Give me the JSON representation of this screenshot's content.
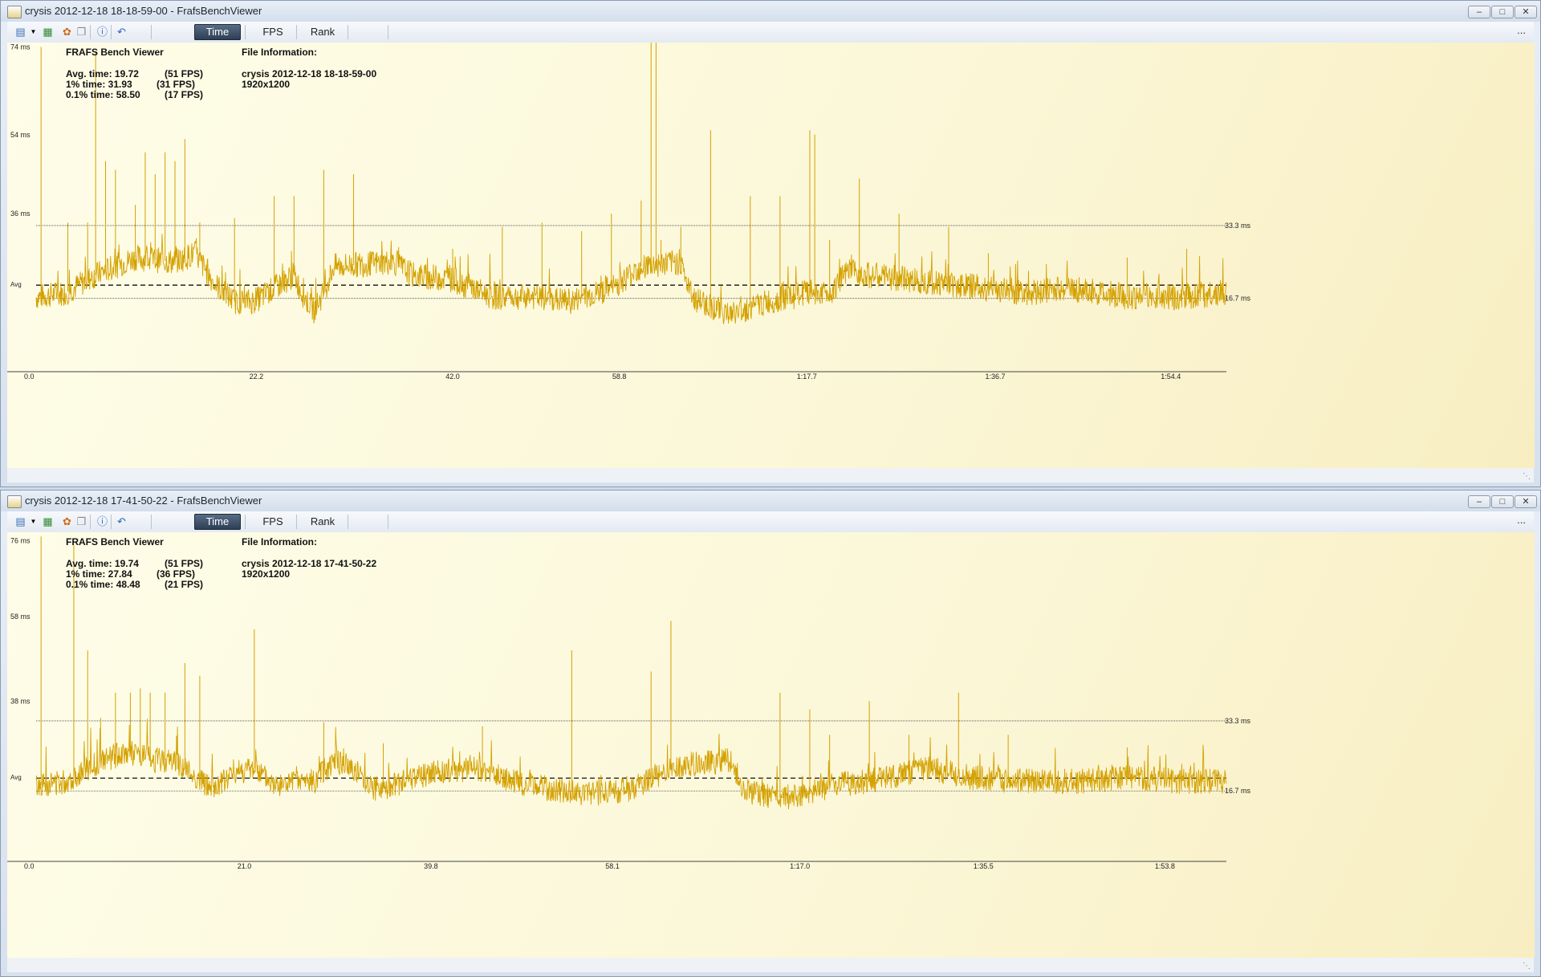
{
  "windows": [
    {
      "title": "crysis 2012-12-18 18-18-59-00 - FrafsBenchViewer",
      "toolbar": {
        "tabs": [
          "Time",
          "FPS",
          "Rank"
        ],
        "active": "Time",
        "more": "..."
      },
      "app_name": "FRAFS Bench Viewer",
      "stats": [
        {
          "label": "Avg. time: 19.72",
          "fps": "(51 FPS)"
        },
        {
          "label": "1% time: 31.93",
          "fps": "(31 FPS)"
        },
        {
          "label": "0.1% time: 58.50",
          "fps": "(17 FPS)"
        }
      ],
      "file_info_title": "File Information:",
      "file_name": "crysis 2012-12-18 18-18-59-00",
      "resolution": "1920x1200",
      "chart_data": {
        "type": "line",
        "xlabel": "",
        "ylabel": "",
        "y_ticks": [
          "74 ms",
          "54 ms",
          "36 ms"
        ],
        "y_tick_values": [
          74,
          54,
          36
        ],
        "x_ticks": [
          "0.0",
          "22.2",
          "42.0",
          "58.8",
          "1:17.7",
          "1:36.7",
          "1:54.4"
        ],
        "x_tick_values": [
          0,
          22.2,
          42.0,
          58.8,
          77.7,
          96.7,
          114.4
        ],
        "xlim": [
          0,
          120
        ],
        "ylim": [
          0,
          75
        ],
        "avg_value": 19.72,
        "avg_label": "Avg",
        "ref_lines": [
          {
            "value": 33.3,
            "label": "33.3 ms"
          },
          {
            "value": 16.7,
            "label": "16.7 ms"
          }
        ],
        "line_color": "#d4a100",
        "baseline": [
          [
            0,
            17
          ],
          [
            3,
            18
          ],
          [
            6,
            22
          ],
          [
            10,
            26
          ],
          [
            14,
            25
          ],
          [
            16,
            27
          ],
          [
            18,
            20
          ],
          [
            20,
            16
          ],
          [
            22,
            16
          ],
          [
            24,
            19
          ],
          [
            26,
            22
          ],
          [
            27,
            17
          ],
          [
            28,
            14
          ],
          [
            29,
            18
          ],
          [
            30,
            24
          ],
          [
            36,
            25
          ],
          [
            38,
            22
          ],
          [
            42,
            21
          ],
          [
            46,
            17
          ],
          [
            50,
            17
          ],
          [
            54,
            16
          ],
          [
            58,
            19
          ],
          [
            61,
            24
          ],
          [
            65,
            25
          ],
          [
            66,
            17
          ],
          [
            70,
            13
          ],
          [
            74,
            16
          ],
          [
            78,
            18
          ],
          [
            80,
            18
          ],
          [
            82,
            23
          ],
          [
            84,
            22
          ],
          [
            88,
            21
          ],
          [
            92,
            20
          ],
          [
            96,
            19
          ],
          [
            100,
            18
          ],
          [
            104,
            19
          ],
          [
            110,
            17
          ],
          [
            115,
            17
          ],
          [
            120,
            18
          ]
        ],
        "spikes": [
          [
            0.5,
            74
          ],
          [
            3.2,
            34
          ],
          [
            5.2,
            34
          ],
          [
            6,
            73
          ],
          [
            7,
            48
          ],
          [
            8,
            46
          ],
          [
            10,
            38
          ],
          [
            11,
            50
          ],
          [
            12,
            45
          ],
          [
            13,
            50
          ],
          [
            14,
            48
          ],
          [
            15,
            53
          ],
          [
            16.5,
            34
          ],
          [
            20,
            35
          ],
          [
            24,
            40
          ],
          [
            26,
            40
          ],
          [
            29,
            46
          ],
          [
            32,
            45
          ],
          [
            42,
            28
          ],
          [
            47,
            33
          ],
          [
            51,
            34
          ],
          [
            55,
            32
          ],
          [
            58,
            36
          ],
          [
            61,
            39
          ],
          [
            62,
            85
          ],
          [
            62.5,
            76
          ],
          [
            63,
            30
          ],
          [
            65,
            33
          ],
          [
            68,
            55
          ],
          [
            72,
            40
          ],
          [
            75,
            40
          ],
          [
            78,
            55
          ],
          [
            78.5,
            54
          ],
          [
            80,
            30
          ],
          [
            83,
            44
          ],
          [
            87,
            36
          ],
          [
            92,
            33
          ],
          [
            96,
            27
          ],
          [
            110,
            26
          ],
          [
            116,
            28
          ]
        ]
      }
    },
    {
      "title": "crysis 2012-12-18 17-41-50-22 - FrafsBenchViewer",
      "toolbar": {
        "tabs": [
          "Time",
          "FPS",
          "Rank"
        ],
        "active": "Time",
        "more": "..."
      },
      "app_name": "FRAFS Bench Viewer",
      "stats": [
        {
          "label": "Avg. time: 19.74",
          "fps": "(51 FPS)"
        },
        {
          "label": "1% time: 27.84",
          "fps": "(36 FPS)"
        },
        {
          "label": "0.1% time: 48.48",
          "fps": "(21 FPS)"
        }
      ],
      "file_info_title": "File Information:",
      "file_name": "crysis 2012-12-18 17-41-50-22",
      "resolution": "1920x1200",
      "chart_data": {
        "type": "line",
        "xlabel": "",
        "ylabel": "",
        "y_ticks": [
          "76 ms",
          "58 ms",
          "38 ms"
        ],
        "y_tick_values": [
          76,
          58,
          38
        ],
        "x_ticks": [
          "0.0",
          "21.0",
          "39.8",
          "58.1",
          "1:17.0",
          "1:35.5",
          "1:53.8"
        ],
        "x_tick_values": [
          0,
          21.0,
          39.8,
          58.1,
          77.0,
          95.5,
          113.8
        ],
        "xlim": [
          0,
          120
        ],
        "ylim": [
          0,
          78
        ],
        "avg_value": 19.74,
        "avg_label": "Avg",
        "ref_lines": [
          {
            "value": 33.3,
            "label": "33.3 ms"
          },
          {
            "value": 16.7,
            "label": "16.7 ms"
          }
        ],
        "line_color": "#d4a100",
        "baseline": [
          [
            0,
            18
          ],
          [
            3,
            19
          ],
          [
            6,
            23
          ],
          [
            9,
            26
          ],
          [
            12,
            24
          ],
          [
            14,
            24
          ],
          [
            16,
            20
          ],
          [
            18,
            17
          ],
          [
            20,
            21
          ],
          [
            22,
            22
          ],
          [
            24,
            18
          ],
          [
            28,
            19
          ],
          [
            30,
            24
          ],
          [
            32,
            22
          ],
          [
            34,
            17
          ],
          [
            36,
            18
          ],
          [
            40,
            21
          ],
          [
            44,
            22
          ],
          [
            48,
            19
          ],
          [
            52,
            17
          ],
          [
            56,
            16
          ],
          [
            60,
            17
          ],
          [
            63,
            21
          ],
          [
            66,
            23
          ],
          [
            70,
            24
          ],
          [
            71,
            17
          ],
          [
            75,
            15
          ],
          [
            78,
            16
          ],
          [
            80,
            18
          ],
          [
            84,
            19
          ],
          [
            88,
            21
          ],
          [
            90,
            22
          ],
          [
            94,
            20
          ],
          [
            98,
            19
          ],
          [
            102,
            19
          ],
          [
            106,
            19
          ],
          [
            110,
            20
          ],
          [
            115,
            19
          ],
          [
            120,
            19
          ]
        ],
        "spikes": [
          [
            0.5,
            77
          ],
          [
            3.8,
            75
          ],
          [
            5.2,
            50
          ],
          [
            6.5,
            34
          ],
          [
            8,
            40
          ],
          [
            9.5,
            40
          ],
          [
            10.5,
            41
          ],
          [
            11.5,
            40
          ],
          [
            13,
            40
          ],
          [
            15,
            47
          ],
          [
            16.5,
            44
          ],
          [
            22,
            55
          ],
          [
            29,
            33
          ],
          [
            35,
            28
          ],
          [
            45,
            32
          ],
          [
            54,
            50
          ],
          [
            62,
            45
          ],
          [
            64,
            57
          ],
          [
            75,
            40
          ],
          [
            78,
            36
          ],
          [
            80,
            30
          ],
          [
            84,
            38
          ],
          [
            88,
            30
          ],
          [
            93,
            40
          ],
          [
            98,
            30
          ],
          [
            110,
            27
          ]
        ]
      }
    }
  ]
}
